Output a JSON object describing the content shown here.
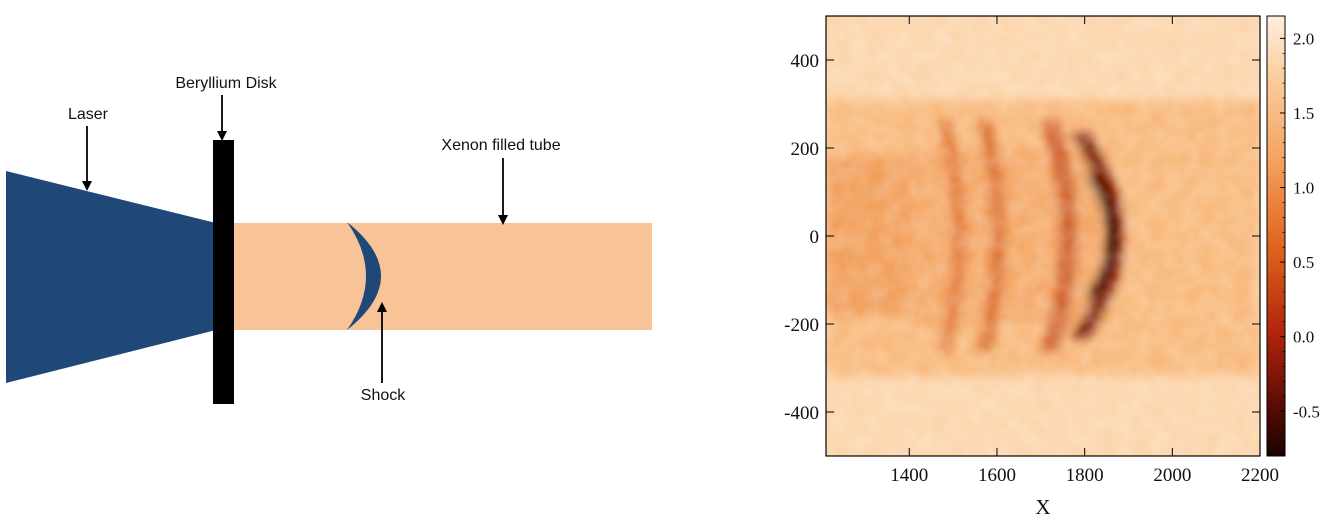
{
  "diagram": {
    "labels": {
      "laser": "Laser",
      "disk": "Beryllium Disk",
      "tube": "Xenon filled tube",
      "shock": "Shock"
    },
    "colors": {
      "laser": "#1f4878",
      "disk": "#000000",
      "tube": "#f8c396",
      "shock": "#1f4878",
      "arrows": "#000000"
    }
  },
  "chart_data": {
    "type": "heatmap",
    "xlabel": "X",
    "ylabel": "",
    "title": "",
    "xlim": [
      1210,
      2200
    ],
    "ylim": [
      -500,
      500
    ],
    "x_ticks": [
      1400,
      1600,
      1800,
      2000,
      2200
    ],
    "y_ticks": [
      400,
      200,
      0,
      -200,
      -400
    ],
    "colorbar": {
      "range": [
        -0.8,
        2.15
      ],
      "ticks": [
        "2.0",
        "1.5",
        "1.0",
        "0.5",
        "0.0",
        "-0.5"
      ],
      "tick_values": [
        2.0,
        1.5,
        1.0,
        0.5,
        0.0,
        -0.5
      ],
      "colormap": "black-red-orange-white (hot)"
    },
    "features": {
      "tube_half_width": 310,
      "shock_front_x": 1860,
      "density_bands_x": [
        1480,
        1570,
        1720
      ],
      "background_value": 1.8,
      "tube_value": 1.5,
      "jet_value": 1.2,
      "shock_value": -0.5
    }
  }
}
